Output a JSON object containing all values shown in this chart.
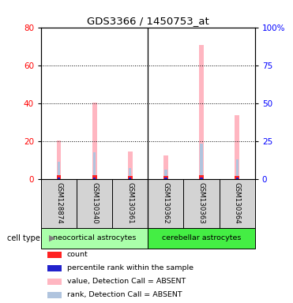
{
  "title": "GDS3366 / 1450753_at",
  "samples": [
    "GSM128874",
    "GSM130340",
    "GSM130361",
    "GSM130362",
    "GSM130363",
    "GSM130364"
  ],
  "group_labels": [
    "neocortical astrocytes",
    "cerebellar astrocytes"
  ],
  "value_absent": [
    20.5,
    40.5,
    14.5,
    12.5,
    70.5,
    33.5
  ],
  "rank_absent": [
    9.0,
    14.0,
    6.0,
    5.0,
    18.5,
    10.5
  ],
  "count_values": [
    2.0,
    2.0,
    1.5,
    1.5,
    2.0,
    1.5
  ],
  "percentile_values": [
    0.8,
    0.8,
    0.8,
    0.8,
    0.8,
    0.8
  ],
  "color_value_absent": "#ffb6c1",
  "color_rank_absent": "#b0c4de",
  "color_count": "#ff2222",
  "color_percentile": "#2222cc",
  "ylim_left": [
    0,
    80
  ],
  "ylim_right": [
    0,
    100
  ],
  "yticks_left": [
    0,
    20,
    40,
    60,
    80
  ],
  "ytick_labels_right": [
    "0",
    "25",
    "50",
    "75",
    "100%"
  ],
  "background_color": "#ffffff",
  "legend_items": [
    {
      "label": "count",
      "color": "#ff2222"
    },
    {
      "label": "percentile rank within the sample",
      "color": "#2222cc"
    },
    {
      "label": "value, Detection Call = ABSENT",
      "color": "#ffb6c1"
    },
    {
      "label": "rank, Detection Call = ABSENT",
      "color": "#b0c4de"
    }
  ]
}
